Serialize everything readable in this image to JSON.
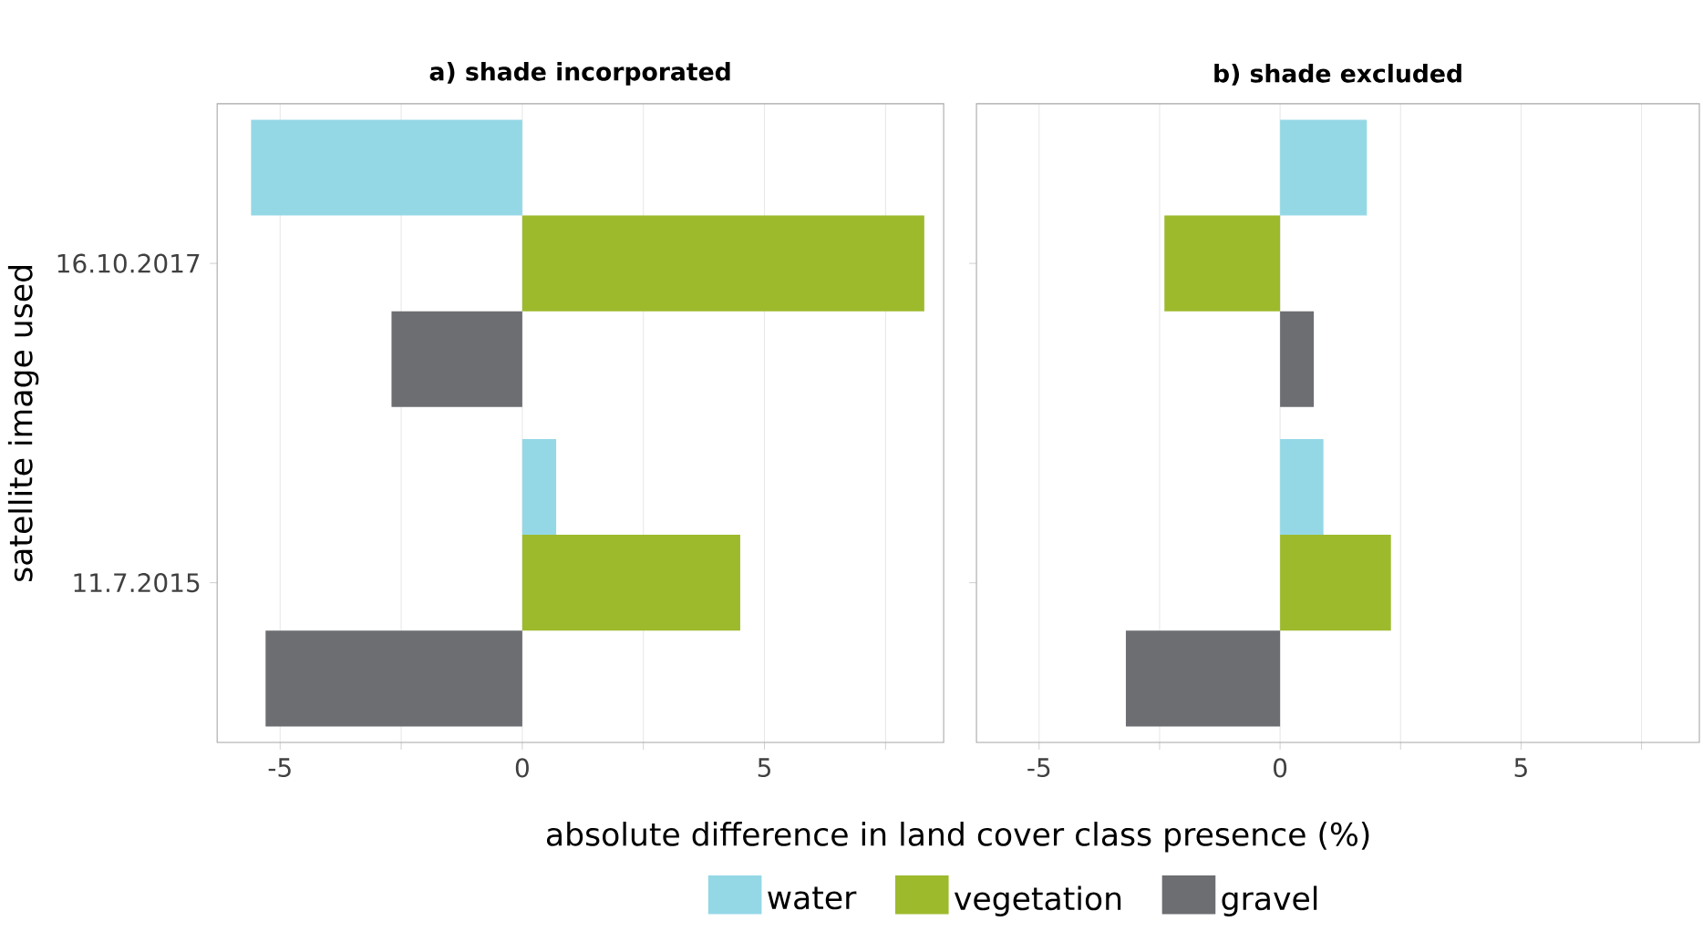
{
  "chart_data": [
    {
      "type": "bar",
      "orientation": "horizontal",
      "title": "a) shade incorporated",
      "xlabel": "absolute difference in land cover class presence (%)",
      "ylabel": "satellite image used",
      "categories": [
        "16.10.2017",
        "11.7.2015"
      ],
      "series": [
        {
          "name": "water",
          "color": "#94d8e6",
          "values": [
            -5.6,
            0.7
          ]
        },
        {
          "name": "vegetation",
          "color": "#9dba2d",
          "values": [
            8.3,
            4.5
          ]
        },
        {
          "name": "gravel",
          "color": "#6d6e71",
          "values": [
            -2.7,
            -5.3
          ]
        }
      ],
      "xlim": [
        -6.3,
        8.7
      ],
      "xticks": [
        {
          "value": -5,
          "label": "-5"
        },
        {
          "value": -2.5,
          "label": null
        },
        0,
        {
          "value": 2.5,
          "label": null
        },
        5,
        {
          "value": 7.5,
          "label": null
        }
      ],
      "grid": "x",
      "legend": "bottom"
    },
    {
      "type": "bar",
      "orientation": "horizontal",
      "title": "b) shade excluded",
      "categories": [
        "16.10.2017",
        "11.7.2015"
      ],
      "series": [
        {
          "color": "#94d8e6",
          "values": [
            1.8,
            0.9
          ]
        },
        {
          "color": "#9dba2d",
          "values": [
            -2.4,
            2.3
          ]
        },
        {
          "color": "#6d6e71",
          "values": [
            0.7,
            -3.2
          ]
        }
      ],
      "xlim": [
        -6.3,
        8.7
      ],
      "xticks": [
        {
          "value": -5,
          "label": "-5"
        },
        {
          "value": -2.5,
          "label": null
        },
        0,
        {
          "value": 2.5,
          "label": null
        },
        5,
        {
          "value": 7.5,
          "label": null
        }
      ],
      "grid": "x",
      "tick_labels": "x"
    }
  ]
}
